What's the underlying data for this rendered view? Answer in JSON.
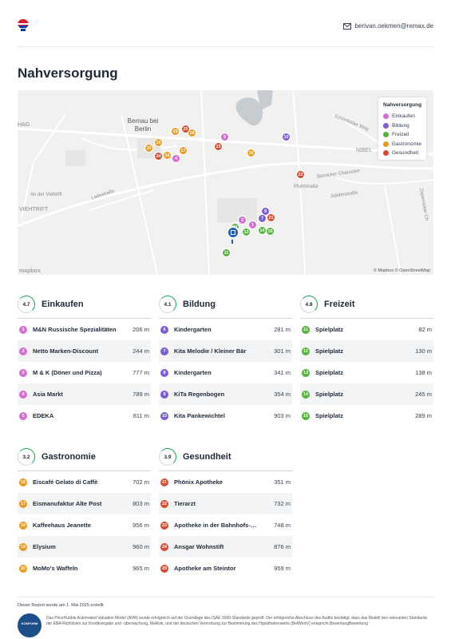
{
  "header": {
    "email": "berivan.oekmen@remax.de",
    "logo_colors": [
      "#dc1c2e",
      "#ffffff",
      "#003da5"
    ]
  },
  "page_title": "Nahversorgung",
  "map": {
    "legend_title": "Nahversorgung",
    "legend": [
      {
        "label": "Einkaufen",
        "color": "#d46fcf"
      },
      {
        "label": "Bildung",
        "color": "#7c5cd6"
      },
      {
        "label": "Freizeit",
        "color": "#56b33e"
      },
      {
        "label": "Gastronomie",
        "color": "#ea9a1e"
      },
      {
        "label": "Gesundheit",
        "color": "#d84a2f"
      }
    ],
    "city_label": "Bernau bei Berlin",
    "street_labels": [
      "HAG",
      "VIEHTRIFT",
      "NIBEL",
      "Börnicker Chaussee",
      "Ladestraße",
      "An der Viehtrift",
      "Pfuhlstraße",
      "Jubilerstraße",
      "Schönfelder Weg",
      "Zepernicker Ch"
    ],
    "attribution": "© Mapbox © OpenStreetMap",
    "brand": "mapbox"
  },
  "sections": [
    {
      "title": "Einkaufen",
      "score": "4.7",
      "color": "#d46fcf",
      "items": [
        {
          "n": "1",
          "name": "M&N Russische Spezialitäten",
          "dist": "206 m"
        },
        {
          "n": "2",
          "name": "Netto Marken-Discount",
          "dist": "244 m"
        },
        {
          "n": "3",
          "name": "M & K (Döner und Pizza)",
          "dist": "777 m"
        },
        {
          "n": "4",
          "name": "Asia Markt",
          "dist": "789 m"
        },
        {
          "n": "5",
          "name": "EDEKA",
          "dist": "811 m"
        }
      ]
    },
    {
      "title": "Bildung",
      "score": "4.1",
      "color": "#7c5cd6",
      "items": [
        {
          "n": "6",
          "name": "Kindergarten",
          "dist": "281 m"
        },
        {
          "n": "7",
          "name": "Kita Melodie / Kleiner Bär",
          "dist": "301 m"
        },
        {
          "n": "8",
          "name": "Kindergarten",
          "dist": "341 m"
        },
        {
          "n": "9",
          "name": "KiTa Regenbogen",
          "dist": "354 m"
        },
        {
          "n": "10",
          "name": "Kita Pankewichtel",
          "dist": "903 m"
        }
      ]
    },
    {
      "title": "Freizeit",
      "score": "4.8",
      "color": "#56b33e",
      "items": [
        {
          "n": "11",
          "name": "Spielplatz",
          "dist": "82 m"
        },
        {
          "n": "12",
          "name": "Spielplatz",
          "dist": "130 m"
        },
        {
          "n": "13",
          "name": "Spielplatz",
          "dist": "138 m"
        },
        {
          "n": "14",
          "name": "Spielplatz",
          "dist": "245 m"
        },
        {
          "n": "15",
          "name": "Spielplatz",
          "dist": "289 m"
        }
      ]
    },
    {
      "title": "Gastronomie",
      "score": "3.2",
      "color": "#ea9a1e",
      "items": [
        {
          "n": "16",
          "name": "Eiscafé Gelato di Caffè",
          "dist": "702 m"
        },
        {
          "n": "17",
          "name": "Eismanufaktur Alte Post",
          "dist": "803 m"
        },
        {
          "n": "18",
          "name": "Kaffeehaus Jeanette",
          "dist": "956 m"
        },
        {
          "n": "19",
          "name": "Elysium",
          "dist": "960 m"
        },
        {
          "n": "20",
          "name": "MoMo's Waffeln",
          "dist": "965 m"
        }
      ]
    },
    {
      "title": "Gesundheit",
      "score": "3.9",
      "color": "#d84a2f",
      "items": [
        {
          "n": "21",
          "name": "Phönix Apotheke",
          "dist": "351 m"
        },
        {
          "n": "22",
          "name": "Tierarzt",
          "dist": "732 m"
        },
        {
          "n": "23",
          "name": "Apotheke in der Bahnhofs-…",
          "dist": "748 m"
        },
        {
          "n": "24",
          "name": "Ansgar Wohnstift",
          "dist": "876 m"
        },
        {
          "n": "25",
          "name": "Apotheke am Steintor",
          "dist": "959 m"
        }
      ]
    }
  ],
  "footer": {
    "created": "Dieser Report wurde am 1. Mai 2025 erstellt",
    "badge": "KONFORM",
    "text": "Das PriceHubble Automated Valuation Model (AVM) wurde erfolgreich auf der Grundlage des ISAE 3000-Standards geprüft. Der erfolgreiche Abschluss des Audits bestätigt, dass das Modell den relevanten Standards der EBA-Richtlinien zur Kreditvergabe und -überwachung, MaRisk, und der deutschen Verordnung zur Bestimmung des Hypothekenwerts (BelWertV) entspricht.BewertungBewertung"
  }
}
